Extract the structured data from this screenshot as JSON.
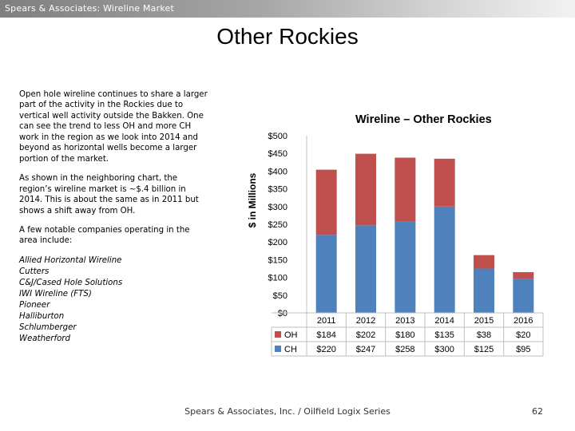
{
  "header": {
    "title": "Spears & Associates:  Wireline Market"
  },
  "slide": {
    "title": "Other Rockies"
  },
  "body": {
    "paragraphs": [
      "Open hole wireline continues to share a larger part of the activity in the Rockies due to vertical well activity outside the Bakken. One can see the trend to less OH and more CH work in the region as we look into 2014 and beyond as horizontal wells become a larger portion of the market.",
      "As shown in the neighboring chart, the region’s wireline market is ~$.4 billion in 2014. This is about the same as in 2011 but shows a shift away from OH.",
      "A few notable companies operating in the area include:"
    ],
    "companies": [
      "Allied Horizontal Wireline",
      "Cutters",
      "C&J/Cased Hole Solutions",
      "IWI Wireline (FTS)",
      "Pioneer",
      "Halliburton",
      "Schlumberger",
      "Weatherford"
    ]
  },
  "footer": {
    "text": "Spears & Associates, Inc. / Oilfield Logix Series",
    "page": "62"
  },
  "chart_data": {
    "type": "bar",
    "stacked": true,
    "title": "Wireline – Other Rockies",
    "ylabel": "$ in Millions",
    "ylim": [
      0,
      500
    ],
    "y_ticks": [
      "$0",
      "$50",
      "$100",
      "$150",
      "$200",
      "$250",
      "$300",
      "$350",
      "$400",
      "$450",
      "$500"
    ],
    "categories": [
      "2011",
      "2012",
      "2013",
      "2014",
      "2015",
      "2016"
    ],
    "series": [
      {
        "name": "CH",
        "values": [
          220,
          247,
          258,
          300,
          125,
          95
        ],
        "labels": [
          "$220",
          "$247",
          "$258",
          "$300",
          "$125",
          "$95"
        ],
        "color": "#4f81bd"
      },
      {
        "name": "OH",
        "values": [
          184,
          202,
          180,
          135,
          38,
          20
        ],
        "labels": [
          "$184",
          "$202",
          "$180",
          "$135",
          "$38",
          "$20"
        ],
        "color": "#c0504d"
      }
    ],
    "data_table": true,
    "grid": false
  }
}
